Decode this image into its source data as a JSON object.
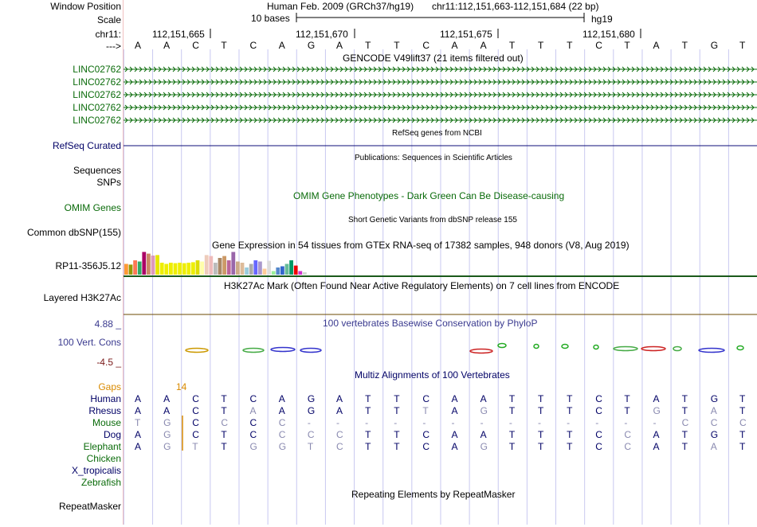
{
  "labels": {
    "window_position": "Window Position",
    "scale": "Scale",
    "chrom": "chr11:",
    "strand_arrow": "--->",
    "linc": [
      "LINC02762",
      "LINC02762",
      "LINC02762",
      "LINC02762",
      "LINC02762"
    ],
    "refseq": "RefSeq Curated",
    "sequences": "Sequences",
    "snps": "SNPs",
    "omim": "OMIM Genes",
    "dbsnp": "Common dbSNP(155)",
    "gtex_gene": "RP11-356J5.12",
    "h3k27ac": "Layered H3K27Ac",
    "phylop_max": "4.88 _",
    "vert_cons": "100 Vert. Cons",
    "phylop_min": "-4.5 _",
    "gaps": "Gaps",
    "species": [
      "Human",
      "Rhesus",
      "Mouse",
      "Dog",
      "Elephant",
      "Chicken",
      "X_tropicalis",
      "Zebrafish"
    ],
    "repeatmasker": "RepeatMasker"
  },
  "header": {
    "assembly": "Human Feb. 2009 (GRCh37/hg19)",
    "position": "chr11:112,151,663-112,151,684 (22 bp)",
    "scale_text": "10 bases",
    "scale_db": "hg19",
    "coords": [
      "112,151,665",
      "112,151,670",
      "112,151,675",
      "112,151,680"
    ]
  },
  "bases": [
    "A",
    "A",
    "C",
    "T",
    "C",
    "A",
    "G",
    "A",
    "T",
    "T",
    "C",
    "A",
    "A",
    "T",
    "T",
    "T",
    "C",
    "T",
    "A",
    "T",
    "G",
    "T"
  ],
  "track_titles": {
    "gencode": "GENCODE V49lift37 (21 items filtered out)",
    "refseq": "RefSeq genes from NCBI",
    "publications": "Publications: Sequences in Scientific Articles",
    "omim": "OMIM Gene Phenotypes - Dark Green Can Be Disease-causing",
    "dbsnp": "Short Genetic Variants from dbSNP release 155",
    "gtex": "Gene Expression in 54 tissues from GTEx RNA-seq of 17382 samples, 948 donors (V8, Aug 2019)",
    "h3k27ac": "H3K27Ac Mark (Often Found Near Active Regulatory Elements) on 7 cell lines from ENCODE",
    "phylop": "100 vertebrates Basewise Conservation by PhyloP",
    "multiz": "Multiz Alignments of 100 Vertebrates",
    "repeatmasker": "Repeating Elements by RepeatMasker"
  },
  "gaps_count": "14",
  "alignment": {
    "Human": [
      "A",
      "A",
      "C",
      "T",
      "C",
      "A",
      "G",
      "A",
      "T",
      "T",
      "C",
      "A",
      "A",
      "T",
      "T",
      "T",
      "C",
      "T",
      "A",
      "T",
      "G",
      "T"
    ],
    "Rhesus": [
      "A",
      "A",
      "C",
      "T",
      "A",
      "A",
      "G",
      "A",
      "T",
      "T",
      "T",
      "A",
      "G",
      "T",
      "T",
      "T",
      "C",
      "T",
      "G",
      "T",
      "A",
      "T"
    ],
    "Mouse": [
      "T",
      "G",
      "C",
      "C",
      "C",
      "C",
      "-",
      "-",
      "-",
      "-",
      "-",
      "-",
      "-",
      "-",
      "-",
      "-",
      "-",
      "-",
      "-",
      "C",
      "C",
      "C"
    ],
    "Dog": [
      "A",
      "G",
      "C",
      "T",
      "C",
      "C",
      "C",
      "C",
      "T",
      "T",
      "C",
      "A",
      "A",
      "T",
      "T",
      "T",
      "C",
      "C",
      "A",
      "T",
      "G",
      "T"
    ],
    "Elephant": [
      "A",
      "G",
      "T",
      "T",
      "G",
      "G",
      "T",
      "C",
      "T",
      "T",
      "C",
      "A",
      "G",
      "T",
      "T",
      "T",
      "C",
      "C",
      "A",
      "T",
      "A",
      "T"
    ]
  },
  "colors": {
    "green_label": "#0a6b0a",
    "navy_label": "#000066",
    "phylop_label": "#3a3a8f",
    "gaps": "#d98a00",
    "gencode": "#0a6b0a",
    "refseq": "#0c0c78",
    "h3k27ac": "#1a5a1a",
    "h3k27ac_line2": "#6b4a00",
    "grid_line": "#c8c8f0"
  },
  "gtex_bar_colors": [
    "#ff9933",
    "#999900",
    "#ff7755",
    "#33aa66",
    "#aa0066",
    "#cc8866",
    "#dd99bb",
    "#e6e600",
    "#eeee00",
    "#eeee00",
    "#eeee00",
    "#eeee00",
    "#eeee00",
    "#eeee00",
    "#eeee00",
    "#eeee00",
    "#dddd00",
    "#ffffaa",
    "#eeccbb",
    "#eebbbb",
    "#bbbbbb",
    "#aa8866",
    "#cc9966",
    "#bb6699",
    "#9966aa",
    "#ccaa88",
    "#ddbb99",
    "#99ccdd",
    "#aaaaaa",
    "#6666ff",
    "#aa99cc",
    "#ffcc99",
    "#dddddd",
    "#99ee99",
    "#5588cc",
    "#3366cc",
    "#66bb99",
    "#009966",
    "#ee0000",
    "#cc33cc",
    "#ccddcc"
  ],
  "gtex_bar_values": [
    0.45,
    0.42,
    0.6,
    0.55,
    0.95,
    0.88,
    0.8,
    0.82,
    0.5,
    0.45,
    0.5,
    0.48,
    0.5,
    0.48,
    0.5,
    0.52,
    0.6,
    0.55,
    0.82,
    0.78,
    0.5,
    0.7,
    0.78,
    0.6,
    0.95,
    0.55,
    0.5,
    0.3,
    0.45,
    0.6,
    0.55,
    0.25,
    0.58,
    0.15,
    0.3,
    0.35,
    0.45,
    0.6,
    0.38,
    0.15,
    0.1
  ]
}
